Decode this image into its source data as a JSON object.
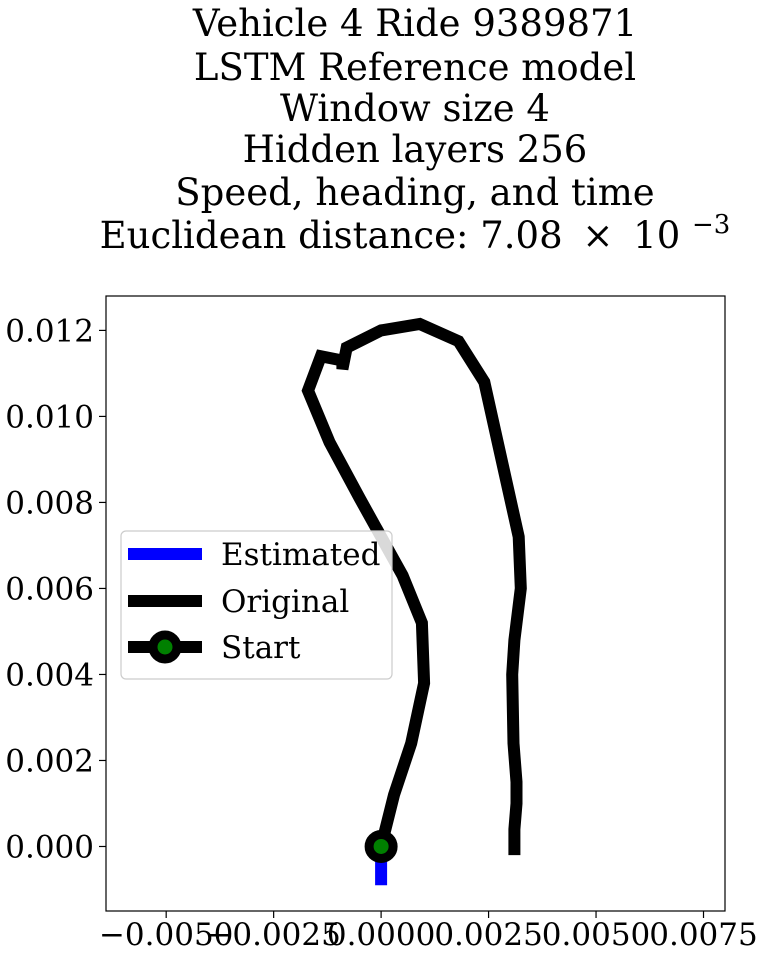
{
  "chart_data": {
    "type": "line",
    "title_lines": [
      "Vehicle 4 Ride 9389871",
      "LSTM Reference model",
      "Window size 4",
      "Hidden layers 256",
      "Speed, heading, and time"
    ],
    "title_metric_label": "Euclidean distance: 7.08",
    "title_metric_mult": "×",
    "title_metric_base": "10",
    "title_metric_exp": "−3",
    "xlabel": "",
    "ylabel": "",
    "xlim": [
      -0.0064,
      0.008
    ],
    "ylim": [
      -0.0015,
      0.0128
    ],
    "xticks": [
      -0.005,
      -0.0025,
      0.0,
      0.0025,
      0.005,
      0.0075
    ],
    "xtick_labels": [
      "−0.0050",
      "−0.0025",
      "0.0000",
      "0.0025",
      "0.0050",
      "0.0075"
    ],
    "yticks": [
      0.0,
      0.002,
      0.004,
      0.006,
      0.008,
      0.01,
      0.012
    ],
    "ytick_labels": [
      "0.000",
      "0.002",
      "0.004",
      "0.006",
      "0.008",
      "0.010",
      "0.012"
    ],
    "grid": false,
    "legend_position": "center-left",
    "colors": {
      "estimated": "#0000ff",
      "original": "#000000",
      "start_marker": "#008000"
    },
    "series": [
      {
        "name": "Estimated",
        "points": [
          [
            0.0,
            -0.0009
          ],
          [
            0.0,
            -0.00025
          ],
          [
            0.0,
            0.0
          ]
        ]
      },
      {
        "name": "Original",
        "points": [
          [
            0.0,
            0.0
          ],
          [
            0.0003,
            0.0012
          ],
          [
            0.0007,
            0.0024
          ],
          [
            0.001,
            0.0038
          ],
          [
            0.00095,
            0.0052
          ],
          [
            0.0005,
            0.0063
          ],
          [
            -0.0005,
            0.0081
          ],
          [
            -0.0012,
            0.0094
          ],
          [
            -0.0017,
            0.0106
          ],
          [
            -0.0014,
            0.0114
          ],
          [
            -0.0009,
            0.0113
          ],
          [
            -0.0009,
            0.0111
          ],
          [
            -0.0008,
            0.0116
          ],
          [
            0.0,
            0.012
          ],
          [
            0.0009,
            0.01215
          ],
          [
            0.0018,
            0.01175
          ],
          [
            0.0024,
            0.0108
          ],
          [
            0.0028,
            0.009
          ],
          [
            0.0032,
            0.0072
          ],
          [
            0.00325,
            0.006
          ],
          [
            0.0031,
            0.0048
          ],
          [
            0.00305,
            0.004
          ],
          [
            0.00308,
            0.0024
          ],
          [
            0.00315,
            0.0015
          ],
          [
            0.00315,
            0.001
          ],
          [
            0.0031,
            0.0004
          ],
          [
            0.0031,
            -0.0002
          ]
        ]
      },
      {
        "name": "Start",
        "points": [
          [
            0.0,
            0.0
          ]
        ]
      }
    ]
  }
}
